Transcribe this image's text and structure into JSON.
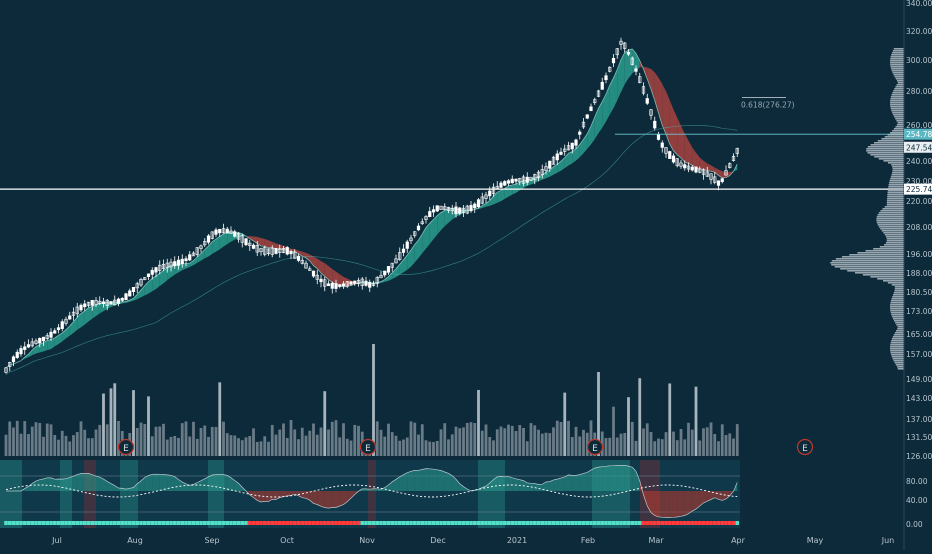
{
  "chart_data": {
    "type": "candlestick",
    "title": "",
    "y_axis": {
      "scale": "log",
      "ticks": [
        "340.00",
        "320.00",
        "300.00",
        "280.00",
        "260.00",
        "240.00",
        "230.00",
        "220.00",
        "208.00",
        "196.00",
        "188.00",
        "180.50",
        "173.00",
        "165.00",
        "157.00",
        "149.00",
        "143.00",
        "137.00",
        "131.50",
        "126.00"
      ]
    },
    "oscillator_axis": {
      "ticks": [
        "80.00",
        "40.00",
        "0.00"
      ]
    },
    "x_axis": {
      "tick_labels": [
        "Jul",
        "Aug",
        "Sep",
        "Oct",
        "Nov",
        "Dec",
        "2021",
        "Feb",
        "Mar",
        "Apr",
        "May",
        "Jun"
      ]
    },
    "price_labels": {
      "high_marker": "254.78",
      "last": "247.54",
      "support": "225.74"
    },
    "fib_annotation": "0.618(276.27)",
    "earnings_marker": "E",
    "anchors": [
      {
        "label": "Jul",
        "price": 150
      },
      {
        "label": "Aug",
        "price": 186
      },
      {
        "label": "Sep",
        "price": 200
      },
      {
        "label": "Oct",
        "price": 197
      },
      {
        "label": "Nov",
        "price": 180
      },
      {
        "label": "Dec",
        "price": 212
      },
      {
        "label": "2021",
        "price": 234
      },
      {
        "label": "Feb",
        "price": 242
      },
      {
        "label": "Feb",
        "price": 310
      },
      {
        "label": "Mar",
        "price": 255
      },
      {
        "label": "Mar",
        "price": 228
      },
      {
        "label": "Apr",
        "price": 247.54
      }
    ],
    "colors": {
      "background": "#0c2a3a",
      "bullish": "#2a9d8f",
      "bearish": "#a8423f",
      "candle": "#ffffff",
      "axis_text": "#b8c4cc",
      "volume": "#7a8a94",
      "volume_highlight": "#c4cdd3",
      "support_line": "#ffffff",
      "resistance_line": "#6cc7d2",
      "osc_bull": "#53e0c8",
      "osc_bear": "#ff3b3b"
    }
  }
}
